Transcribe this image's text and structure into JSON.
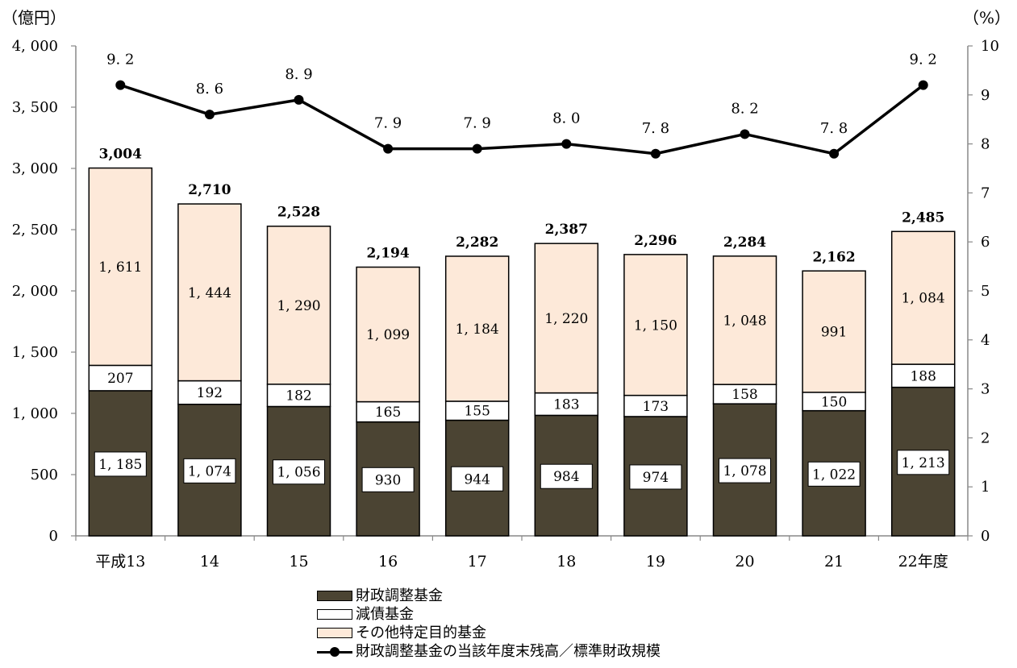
{
  "chart_data": {
    "type": "bar",
    "categories": [
      "平成13",
      "14",
      "15",
      "16",
      "17",
      "18",
      "19",
      "20",
      "21",
      "22年度"
    ],
    "series": [
      {
        "name": "財政調整基金",
        "values": [
          1185,
          1074,
          1056,
          930,
          944,
          984,
          974,
          1078,
          1022,
          1213
        ],
        "labels": [
          "1, 185",
          "1, 074",
          "1, 056",
          "930",
          "944",
          "984",
          "974",
          "1, 078",
          "1, 022",
          "1, 213"
        ],
        "color": "#4b4433"
      },
      {
        "name": "減債基金",
        "values": [
          207,
          192,
          182,
          165,
          155,
          183,
          173,
          158,
          150,
          188
        ],
        "labels": [
          "207",
          "192",
          "182",
          "165",
          "155",
          "183",
          "173",
          "158",
          "150",
          "188"
        ],
        "color": "#ffffff"
      },
      {
        "name": "その他特定目的基金",
        "values": [
          1611,
          1444,
          1290,
          1099,
          1184,
          1220,
          1150,
          1048,
          991,
          1084
        ],
        "labels": [
          "1, 611",
          "1, 444",
          "1, 290",
          "1, 099",
          "1, 184",
          "1, 220",
          "1, 150",
          "1, 048",
          "991",
          "1, 084"
        ],
        "color": "#fde9d9"
      }
    ],
    "totals": [
      3004,
      2710,
      2528,
      2194,
      2282,
      2387,
      2296,
      2284,
      2162,
      2485
    ],
    "total_labels": [
      "3,004",
      "2,710",
      "2,528",
      "2,194",
      "2,282",
      "2,387",
      "2,296",
      "2,284",
      "2,162",
      "2,485"
    ],
    "line_series": {
      "name": "財政調整基金の当該年度末残高／標準財政規模",
      "values": [
        9.2,
        8.6,
        8.9,
        7.9,
        7.9,
        8.0,
        7.8,
        8.2,
        7.8,
        9.2
      ],
      "labels": [
        "9. 2",
        "8. 6",
        "8. 9",
        "7. 9",
        "7. 9",
        "8. 0",
        "7. 8",
        "8. 2",
        "7. 8",
        "9. 2"
      ],
      "color": "#000000"
    },
    "ylim": [
      0,
      4000
    ],
    "yticks": [
      0,
      500,
      1000,
      1500,
      2000,
      2500,
      3000,
      3500,
      4000
    ],
    "ytick_labels": [
      "0",
      "500",
      "1, 000",
      "1, 500",
      "2, 000",
      "2, 500",
      "3, 000",
      "3, 500",
      "4, 000"
    ],
    "y2lim": [
      0,
      10
    ],
    "y2ticks": [
      0,
      1,
      2,
      3,
      4,
      5,
      6,
      7,
      8,
      9,
      10
    ],
    "y2tick_labels": [
      "0",
      "1",
      "2",
      "3",
      "4",
      "5",
      "6",
      "7",
      "8",
      "9",
      "10"
    ],
    "ylabel": "（億円）",
    "y2label": "（%）",
    "legend_position": "bottom-center",
    "grid": false
  }
}
